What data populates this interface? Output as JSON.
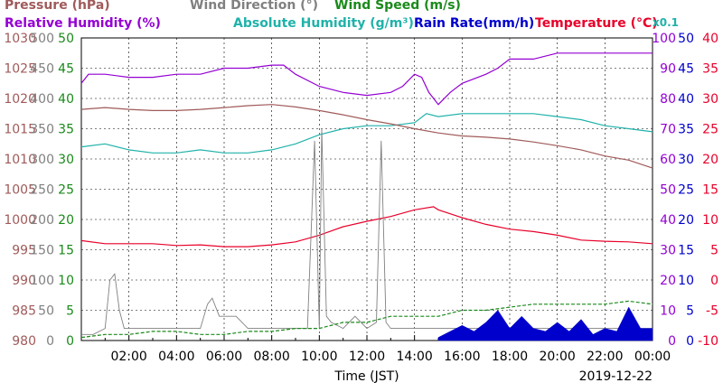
{
  "chart_data": {
    "type": "line",
    "date": "2019-12-22",
    "xlabel": "Time (JST)",
    "x_ticks": [
      "02:00",
      "04:00",
      "06:00",
      "08:00",
      "10:00",
      "12:00",
      "14:00",
      "16:00",
      "18:00",
      "20:00",
      "22:00",
      "00:00"
    ],
    "x_range": [
      0,
      24
    ],
    "grid": true,
    "legend": [
      {
        "label": "Pressure (hPa)",
        "color": "#a05a5a"
      },
      {
        "label": "Wind Direction (°)",
        "color": "#808080"
      },
      {
        "label": "Wind Speed (m/s)",
        "color": "#1a8a1a"
      },
      {
        "label": "Relative Humidity (%)",
        "color": "#9400d3"
      },
      {
        "label": "Absolute Humidity (g/m³)",
        "color": "#20b2aa"
      },
      {
        "label": "Rain Rate(mm/h)",
        "color": "#0000cc"
      },
      {
        "label": "Temperature (°C)",
        "color": "#e8002a"
      },
      {
        "label": "x0.1",
        "color": "#20b2aa"
      }
    ],
    "axes": {
      "pressure": {
        "color": "#a05a5a",
        "ylim": [
          980,
          1030
        ],
        "ticks": [
          "1030",
          "1025",
          "1020",
          "1015",
          "1010",
          "1005",
          "1000",
          "995",
          "990",
          "985",
          "980"
        ]
      },
      "wind_direction": {
        "color": "#808080",
        "ylim": [
          0,
          500
        ],
        "ticks": [
          "500",
          "450",
          "400",
          "350",
          "300",
          "250",
          "200",
          "150",
          "100",
          "50",
          "0"
        ]
      },
      "wind_speed": {
        "color": "#1a8a1a",
        "ylim": [
          0,
          50
        ],
        "ticks": [
          "50",
          "45",
          "40",
          "35",
          "30",
          "25",
          "20",
          "15",
          "10",
          "5",
          "0"
        ]
      },
      "humidity": {
        "color": "#9400d3",
        "ylim": [
          0,
          100
        ],
        "ticks": [
          "100",
          "90",
          "80",
          "70",
          "60",
          "50",
          "40",
          "30",
          "20",
          "10",
          "0"
        ]
      },
      "rain_rate": {
        "color": "#0000cc",
        "ylim": [
          0,
          50
        ],
        "ticks": [
          "50",
          "45",
          "40",
          "35",
          "30",
          "25",
          "20",
          "15",
          "10",
          "5",
          "0"
        ]
      },
      "temperature": {
        "color": "#e8002a",
        "ylim": [
          -10,
          40
        ],
        "ticks": [
          "40",
          "35",
          "30",
          "25",
          "20",
          "15",
          "10",
          "5",
          "0",
          "-5",
          "-10"
        ]
      }
    },
    "series": [
      {
        "name": "Relative Humidity (%)",
        "axis": "humidity",
        "color": "#9400d3",
        "x": [
          0,
          0.3,
          1,
          2,
          3,
          4,
          5,
          6,
          7,
          8,
          8.5,
          9,
          10,
          11,
          12,
          13,
          13.5,
          14,
          14.3,
          14.6,
          15,
          15.5,
          16,
          17,
          17.5,
          18,
          19,
          20,
          21,
          22,
          23,
          24
        ],
        "y": [
          85,
          88,
          88,
          87,
          87,
          88,
          88,
          90,
          90,
          91,
          91,
          88,
          84,
          82,
          81,
          82,
          84,
          88,
          87,
          82,
          78,
          82,
          85,
          88,
          90,
          93,
          93,
          95,
          95,
          95,
          95,
          95
        ]
      },
      {
        "name": "Absolute Humidity (g/m³) x0.1",
        "axis": "humidity",
        "color": "#20b2aa",
        "x": [
          0,
          1,
          2,
          3,
          4,
          5,
          6,
          7,
          8,
          9,
          10,
          11,
          12,
          13,
          14,
          14.5,
          15,
          16,
          17,
          18,
          19,
          20,
          21,
          22,
          23,
          24
        ],
        "y": [
          64,
          65,
          63,
          62,
          62,
          63,
          62,
          62,
          63,
          65,
          68,
          70,
          71,
          71,
          72,
          75,
          74,
          75,
          75,
          75,
          75,
          74,
          73,
          71,
          70,
          69
        ],
        "note": "values shown x0.1 (g/m³)"
      },
      {
        "name": "Pressure (hPa)",
        "axis": "pressure",
        "color": "#a05a5a",
        "x": [
          0,
          1,
          2,
          3,
          4,
          5,
          6,
          7,
          8,
          9,
          10,
          11,
          12,
          13,
          14,
          15,
          16,
          17,
          18,
          19,
          20,
          21,
          22,
          23,
          24
        ],
        "y": [
          1018.2,
          1018.5,
          1018.2,
          1018,
          1018,
          1018.2,
          1018.5,
          1018.8,
          1019,
          1018.6,
          1018,
          1017.3,
          1016.5,
          1015.8,
          1015,
          1014.3,
          1013.8,
          1013.6,
          1013.3,
          1012.8,
          1012.2,
          1011.5,
          1010.5,
          1009.8,
          1008.5
        ]
      },
      {
        "name": "Temperature (°C)",
        "axis": "temperature",
        "color": "#e8002a",
        "x": [
          0,
          1,
          2,
          3,
          4,
          5,
          6,
          7,
          8,
          9,
          10,
          11,
          12,
          13,
          14,
          14.8,
          15,
          16,
          17,
          18,
          19,
          20,
          21,
          22,
          23,
          24
        ],
        "y": [
          6.5,
          6,
          6,
          6,
          5.7,
          5.8,
          5.5,
          5.5,
          5.8,
          6.3,
          7.4,
          8.8,
          9.7,
          10.5,
          11.6,
          12.1,
          11.6,
          10.3,
          9.2,
          8.4,
          8,
          7.4,
          6.6,
          6.4,
          6.3,
          6
        ]
      },
      {
        "name": "Wind Direction (°)",
        "axis": "wind_direction",
        "color": "#808080",
        "x": [
          0,
          0.5,
          1,
          1.2,
          1.4,
          1.6,
          1.8,
          2,
          3,
          4,
          5,
          5.3,
          5.5,
          5.8,
          6,
          6.5,
          7,
          8,
          9,
          9.5,
          9.8,
          10,
          10.1,
          10.3,
          10.5,
          11,
          11.5,
          12,
          12.4,
          12.6,
          12.8,
          13,
          14,
          15,
          16,
          17,
          18,
          19,
          20,
          21,
          22,
          23,
          24
        ],
        "y": [
          10,
          10,
          20,
          100,
          110,
          50,
          20,
          20,
          20,
          20,
          20,
          60,
          70,
          40,
          40,
          40,
          20,
          20,
          20,
          20,
          330,
          20,
          350,
          40,
          30,
          20,
          40,
          20,
          30,
          330,
          30,
          20,
          20,
          20,
          20,
          20,
          20,
          20,
          20,
          20,
          20,
          20,
          20
        ]
      },
      {
        "name": "Wind Speed (m/s)",
        "axis": "wind_speed",
        "color": "#1a8a1a",
        "x": [
          0,
          1,
          2,
          3,
          4,
          5,
          6,
          7,
          8,
          9,
          10,
          11,
          12,
          13,
          14,
          15,
          16,
          17,
          18,
          19,
          20,
          21,
          22,
          23,
          24
        ],
        "y": [
          0.5,
          1,
          1,
          1.5,
          1.5,
          1,
          1,
          1.5,
          1.5,
          2,
          2,
          3,
          3,
          4,
          4,
          4,
          5,
          5,
          5.5,
          6,
          6,
          6,
          6,
          6.5,
          6
        ]
      },
      {
        "name": "Rain Rate(mm/h)",
        "axis": "rain_rate",
        "color": "#0000cc",
        "type": "area",
        "x": [
          15,
          15.5,
          16,
          16.5,
          17,
          17.5,
          18,
          18.5,
          19,
          19.5,
          20,
          20.5,
          21,
          21.5,
          22,
          22.5,
          23,
          23.5,
          24
        ],
        "y": [
          0.5,
          1.5,
          2.5,
          1.5,
          3,
          5,
          2,
          4,
          2,
          1.5,
          3,
          1.5,
          3.5,
          1,
          2,
          1.5,
          5.5,
          2,
          2
        ]
      }
    ]
  }
}
